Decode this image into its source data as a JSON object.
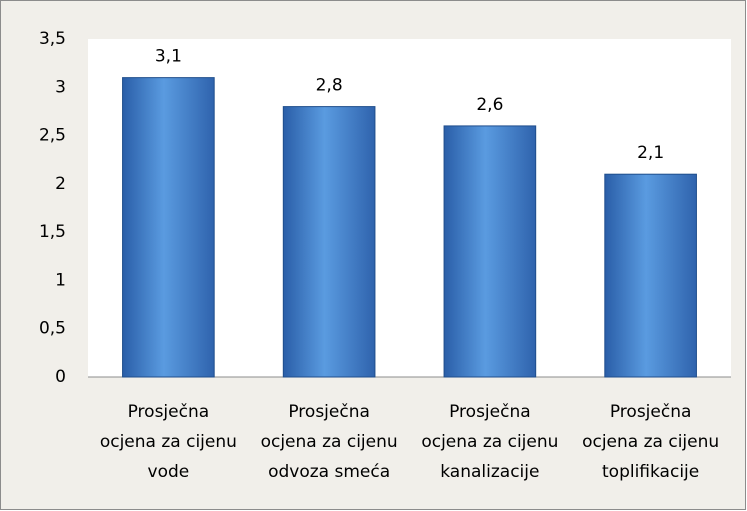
{
  "chart_data": {
    "type": "bar",
    "categories": [
      "Prosječna\nocjena za cijenu\nvode",
      "Prosječna\nocjena za cijenu\nodvoza smeća",
      "Prosječna\nocjena za cijenu\nkanalizacije",
      "Prosječna\nocjena za cijenu\ntoplifikacije"
    ],
    "values": [
      3.1,
      2.8,
      2.6,
      2.1
    ],
    "value_labels": [
      "3,1",
      "2,8",
      "2,6",
      "2,1"
    ],
    "color": "#3f7cc4",
    "ylim": [
      0,
      3.5
    ],
    "yticks": [
      0,
      {
        "value": 0.5,
        "label": "0,5"
      },
      1,
      {
        "value": 1.5,
        "label": "1,5"
      },
      2,
      {
        "value": 2.5,
        "label": "2,5"
      },
      3,
      {
        "value": 3.5,
        "label": "3,5"
      }
    ],
    "grid": false
  }
}
